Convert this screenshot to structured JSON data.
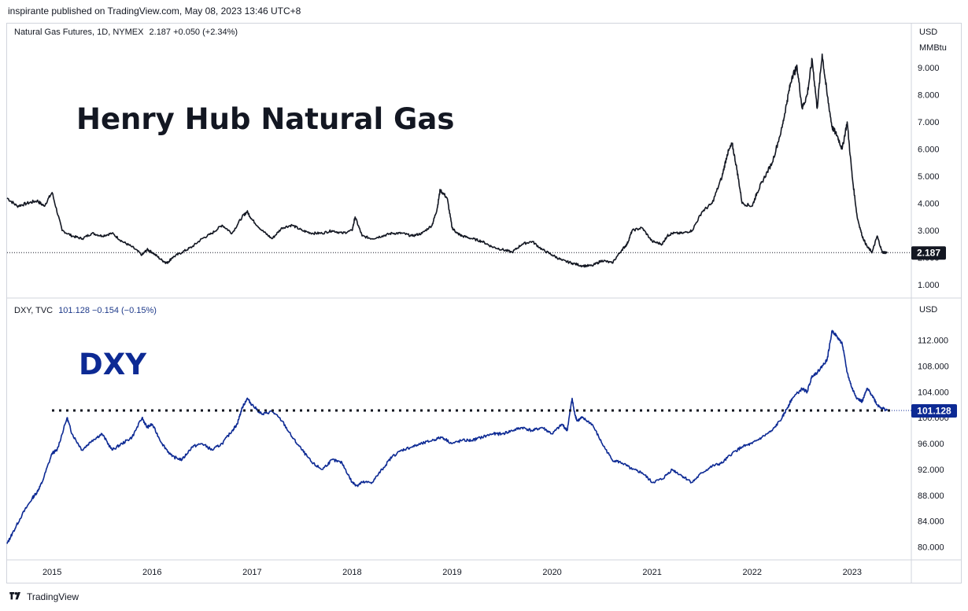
{
  "header": {
    "published_text": "inspirante published on TradingView.com, May 08, 2023 13:46 UTC+8"
  },
  "footer": {
    "brand": "TradingView"
  },
  "panes": {
    "natgas": {
      "legend_symbol": "Natural Gas Futures, 1D, NYMEX",
      "legend_values": "2.187  +0.050 (+2.34%)",
      "big_label": "Henry Hub Natural Gas",
      "unit_line1": "USD",
      "unit_line2": "MMBtu",
      "last_label": "2.187"
    },
    "dxy": {
      "legend_symbol": "DXY, TVC",
      "legend_values": "101.128  −0.154 (−0.15%)",
      "big_label": "DXY",
      "unit_line1": "USD",
      "last_label": "101.128"
    }
  },
  "chart_data": [
    {
      "type": "line",
      "title": "Natural Gas Futures, 1D, NYMEX",
      "xlabel": "",
      "ylabel": "USD MMBtu",
      "x_ticks": [
        "2015",
        "2016",
        "2017",
        "2018",
        "2019",
        "2020",
        "2021",
        "2022",
        "2023"
      ],
      "y_ticks": [
        1.0,
        2.0,
        3.0,
        4.0,
        5.0,
        6.0,
        7.0,
        8.0,
        9.0
      ],
      "ylim": [
        0.6,
        9.9
      ],
      "xlim": [
        2014.55,
        2023.45
      ],
      "last_value": 2.187,
      "line_color": "#131722",
      "series": [
        {
          "x": [
            2014.55,
            2014.65,
            2014.75,
            2014.85,
            2014.92,
            2015.0,
            2015.1,
            2015.2,
            2015.3,
            2015.4,
            2015.5,
            2015.6,
            2015.7,
            2015.8,
            2015.9,
            2015.95,
            2016.0,
            2016.1,
            2016.15,
            2016.2,
            2016.3,
            2016.4,
            2016.5,
            2016.6,
            2016.7,
            2016.8,
            2016.9,
            2016.95,
            2017.0,
            2017.1,
            2017.2,
            2017.3,
            2017.4,
            2017.5,
            2017.6,
            2017.7,
            2017.8,
            2017.9,
            2018.0,
            2018.03,
            2018.1,
            2018.2,
            2018.3,
            2018.4,
            2018.5,
            2018.6,
            2018.7,
            2018.8,
            2018.85,
            2018.88,
            2018.95,
            2019.0,
            2019.05,
            2019.1,
            2019.2,
            2019.3,
            2019.4,
            2019.5,
            2019.6,
            2019.7,
            2019.8,
            2019.9,
            2020.0,
            2020.1,
            2020.2,
            2020.3,
            2020.4,
            2020.5,
            2020.6,
            2020.7,
            2020.75,
            2020.8,
            2020.9,
            2021.0,
            2021.1,
            2021.15,
            2021.2,
            2021.3,
            2021.4,
            2021.5,
            2021.6,
            2021.7,
            2021.75,
            2021.8,
            2021.85,
            2021.9,
            2022.0,
            2022.05,
            2022.1,
            2022.2,
            2022.3,
            2022.35,
            2022.4,
            2022.45,
            2022.5,
            2022.55,
            2022.6,
            2022.65,
            2022.7,
            2022.75,
            2022.8,
            2022.85,
            2022.9,
            2022.95,
            2023.0,
            2023.05,
            2023.1,
            2023.15,
            2023.2,
            2023.25,
            2023.3,
            2023.35
          ],
          "y": [
            4.2,
            3.9,
            4.0,
            4.1,
            3.9,
            4.4,
            3.0,
            2.8,
            2.7,
            2.9,
            2.8,
            2.9,
            2.6,
            2.4,
            2.1,
            2.3,
            2.2,
            1.9,
            1.8,
            2.0,
            2.2,
            2.4,
            2.7,
            2.9,
            3.2,
            2.9,
            3.5,
            3.7,
            3.4,
            3.0,
            2.7,
            3.1,
            3.2,
            3.0,
            2.9,
            2.9,
            3.0,
            2.9,
            3.0,
            3.5,
            2.8,
            2.7,
            2.8,
            2.9,
            2.9,
            2.8,
            2.9,
            3.2,
            3.8,
            4.5,
            4.2,
            3.1,
            2.9,
            2.8,
            2.7,
            2.6,
            2.4,
            2.3,
            2.2,
            2.5,
            2.6,
            2.3,
            2.1,
            1.9,
            1.8,
            1.7,
            1.7,
            1.9,
            1.8,
            2.3,
            2.5,
            3.0,
            3.1,
            2.6,
            2.5,
            2.8,
            2.9,
            2.9,
            3.0,
            3.7,
            4.0,
            5.0,
            5.8,
            6.2,
            5.2,
            4.0,
            3.9,
            4.4,
            4.8,
            5.5,
            6.8,
            7.8,
            8.7,
            9.0,
            7.5,
            8.0,
            9.3,
            7.5,
            9.5,
            8.0,
            6.8,
            6.5,
            6.0,
            7.0,
            5.0,
            3.5,
            2.8,
            2.4,
            2.2,
            2.8,
            2.2,
            2.187
          ]
        }
      ]
    },
    {
      "type": "line",
      "title": "DXY, TVC",
      "xlabel": "",
      "ylabel": "USD",
      "x_ticks": [
        "2015",
        "2016",
        "2017",
        "2018",
        "2019",
        "2020",
        "2021",
        "2022",
        "2023"
      ],
      "y_ticks": [
        80.0,
        84.0,
        88.0,
        92.0,
        96.0,
        100.0,
        104.0,
        108.0,
        112.0
      ],
      "ylim": [
        78.0,
        115.0
      ],
      "xlim": [
        2014.55,
        2023.45
      ],
      "last_value": 101.128,
      "reference_level": 101.128,
      "line_color": "#0d2a94",
      "series": [
        {
          "x": [
            2014.55,
            2014.6,
            2014.7,
            2014.8,
            2014.85,
            2014.9,
            2015.0,
            2015.05,
            2015.15,
            2015.2,
            2015.3,
            2015.4,
            2015.5,
            2015.6,
            2015.7,
            2015.8,
            2015.9,
            2015.95,
            2016.0,
            2016.1,
            2016.2,
            2016.3,
            2016.4,
            2016.5,
            2016.6,
            2016.7,
            2016.8,
            2016.85,
            2016.9,
            2016.95,
            2017.0,
            2017.1,
            2017.2,
            2017.3,
            2017.4,
            2017.5,
            2017.6,
            2017.7,
            2017.8,
            2017.9,
            2018.0,
            2018.05,
            2018.1,
            2018.2,
            2018.3,
            2018.4,
            2018.5,
            2018.6,
            2018.7,
            2018.8,
            2018.9,
            2019.0,
            2019.1,
            2019.2,
            2019.3,
            2019.4,
            2019.5,
            2019.6,
            2019.7,
            2019.8,
            2019.9,
            2020.0,
            2020.1,
            2020.15,
            2020.2,
            2020.22,
            2020.25,
            2020.3,
            2020.4,
            2020.5,
            2020.6,
            2020.7,
            2020.8,
            2020.9,
            2021.0,
            2021.1,
            2021.2,
            2021.3,
            2021.4,
            2021.5,
            2021.6,
            2021.7,
            2021.8,
            2021.9,
            2022.0,
            2022.1,
            2022.2,
            2022.3,
            2022.35,
            2022.4,
            2022.5,
            2022.55,
            2022.6,
            2022.65,
            2022.7,
            2022.75,
            2022.8,
            2022.85,
            2022.9,
            2022.95,
            2023.0,
            2023.05,
            2023.1,
            2023.15,
            2023.2,
            2023.25,
            2023.3,
            2023.35
          ],
          "y": [
            80.5,
            82.0,
            85.0,
            87.5,
            88.5,
            90.0,
            94.5,
            95.0,
            100.0,
            97.5,
            95.0,
            96.5,
            97.5,
            95.0,
            96.0,
            97.0,
            100.0,
            98.5,
            99.0,
            96.0,
            94.0,
            93.5,
            95.5,
            96.0,
            95.0,
            96.0,
            98.0,
            99.0,
            101.5,
            103.0,
            102.0,
            100.5,
            101.0,
            99.5,
            97.0,
            95.0,
            93.0,
            92.0,
            93.5,
            93.0,
            90.0,
            89.5,
            90.0,
            90.0,
            92.0,
            94.0,
            95.0,
            95.5,
            96.0,
            96.5,
            97.0,
            96.0,
            96.5,
            96.5,
            97.0,
            97.5,
            97.5,
            98.0,
            98.5,
            98.0,
            98.5,
            97.5,
            99.0,
            98.0,
            103.0,
            101.0,
            99.5,
            100.0,
            99.0,
            96.0,
            93.5,
            93.0,
            92.0,
            91.5,
            90.0,
            90.5,
            92.0,
            91.0,
            90.0,
            91.5,
            92.5,
            93.0,
            94.5,
            95.5,
            96.0,
            97.0,
            98.0,
            100.0,
            101.5,
            103.0,
            104.5,
            104.0,
            106.5,
            107.0,
            108.0,
            109.0,
            113.5,
            112.5,
            111.5,
            107.0,
            104.5,
            103.0,
            102.5,
            104.5,
            103.5,
            102.0,
            101.5,
            101.128
          ]
        }
      ]
    }
  ]
}
